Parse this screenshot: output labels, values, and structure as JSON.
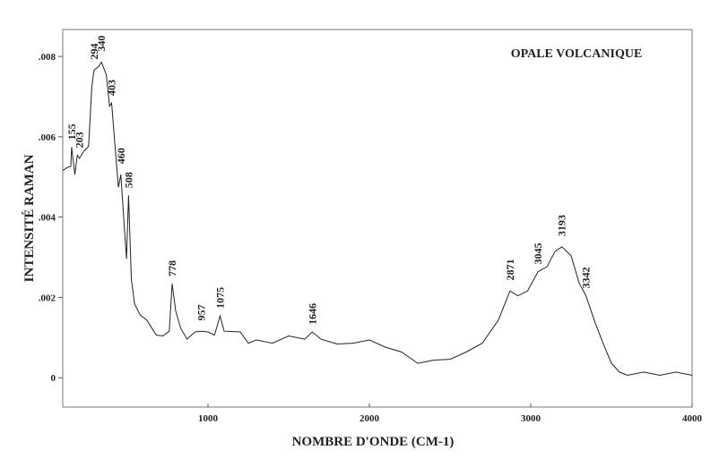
{
  "chart_data": {
    "type": "line",
    "title": "OPALE VOLCANIQUE",
    "xlabel": "NOMBRE D'ONDE (CM-1)",
    "ylabel": "INTENSITÉ RAMAN",
    "xlim": [
      100,
      4000
    ],
    "ylim": [
      -0.00073,
      0.00867
    ],
    "xticks": [
      1000,
      2000,
      3000,
      4000
    ],
    "xtick_labels": [
      "1000",
      "2000",
      "3000",
      "4000"
    ],
    "yticks": [
      0,
      0.002,
      0.004,
      0.006,
      0.008
    ],
    "ytick_labels": [
      "0",
      ".002",
      ".004",
      ".006",
      ".008"
    ],
    "grid": false,
    "series": [
      {
        "name": "Opale volcanique",
        "x": [
          100,
          130,
          150,
          155,
          175,
          190,
          203,
          230,
          260,
          280,
          294,
          320,
          340,
          370,
          390,
          403,
          430,
          445,
          460,
          480,
          495,
          508,
          525,
          545,
          580,
          620,
          680,
          720,
          760,
          778,
          800,
          830,
          870,
          920,
          957,
          1000,
          1040,
          1075,
          1100,
          1200,
          1250,
          1300,
          1400,
          1500,
          1600,
          1646,
          1700,
          1800,
          1900,
          2000,
          2100,
          2200,
          2300,
          2400,
          2500,
          2600,
          2700,
          2800,
          2871,
          2920,
          2980,
          3045,
          3100,
          3150,
          3193,
          3250,
          3300,
          3342,
          3400,
          3450,
          3500,
          3550,
          3600,
          3700,
          3800,
          3900,
          4000
        ],
        "y": [
          0.0052,
          0.0052,
          0.0053,
          0.0057,
          0.0051,
          0.0055,
          0.0055,
          0.0056,
          0.0058,
          0.0072,
          0.0077,
          0.0077,
          0.0079,
          0.0075,
          0.0068,
          0.0068,
          0.0055,
          0.0047,
          0.0051,
          0.0038,
          0.003,
          0.0045,
          0.0025,
          0.0018,
          0.0016,
          0.0014,
          0.0011,
          0.001,
          0.0012,
          0.0023,
          0.0017,
          0.0012,
          0.001,
          0.0011,
          0.0012,
          0.0011,
          0.0011,
          0.0015,
          0.0012,
          0.0011,
          0.0009,
          0.0009,
          0.0009,
          0.001,
          0.001,
          0.0011,
          0.001,
          0.0008,
          0.0009,
          0.0009,
          0.0008,
          0.0006,
          0.0004,
          0.0004,
          0.0005,
          0.0006,
          0.0009,
          0.0014,
          0.0022,
          0.002,
          0.0022,
          0.0026,
          0.0028,
          0.0031,
          0.0033,
          0.003,
          0.0024,
          0.002,
          0.0014,
          0.0008,
          0.0004,
          0.0001,
          0.0001,
          0.0001,
          0.0001,
          0.0001,
          0.0001
        ]
      }
    ],
    "annotations": [
      {
        "x": 155,
        "y": 0.0057,
        "text": "155"
      },
      {
        "x": 203,
        "y": 0.0055,
        "text": "203"
      },
      {
        "x": 294,
        "y": 0.0077,
        "text": "294"
      },
      {
        "x": 340,
        "y": 0.0079,
        "text": "340"
      },
      {
        "x": 403,
        "y": 0.0068,
        "text": "403"
      },
      {
        "x": 460,
        "y": 0.0051,
        "text": "460"
      },
      {
        "x": 508,
        "y": 0.0045,
        "text": "508"
      },
      {
        "x": 778,
        "y": 0.0023,
        "text": "778"
      },
      {
        "x": 957,
        "y": 0.0012,
        "text": "957"
      },
      {
        "x": 1075,
        "y": 0.0015,
        "text": "1075"
      },
      {
        "x": 1646,
        "y": 0.0011,
        "text": "1646"
      },
      {
        "x": 2871,
        "y": 0.0022,
        "text": "2871"
      },
      {
        "x": 3045,
        "y": 0.0026,
        "text": "3045"
      },
      {
        "x": 3193,
        "y": 0.0033,
        "text": "3193"
      },
      {
        "x": 3342,
        "y": 0.002,
        "text": "3342"
      }
    ]
  }
}
